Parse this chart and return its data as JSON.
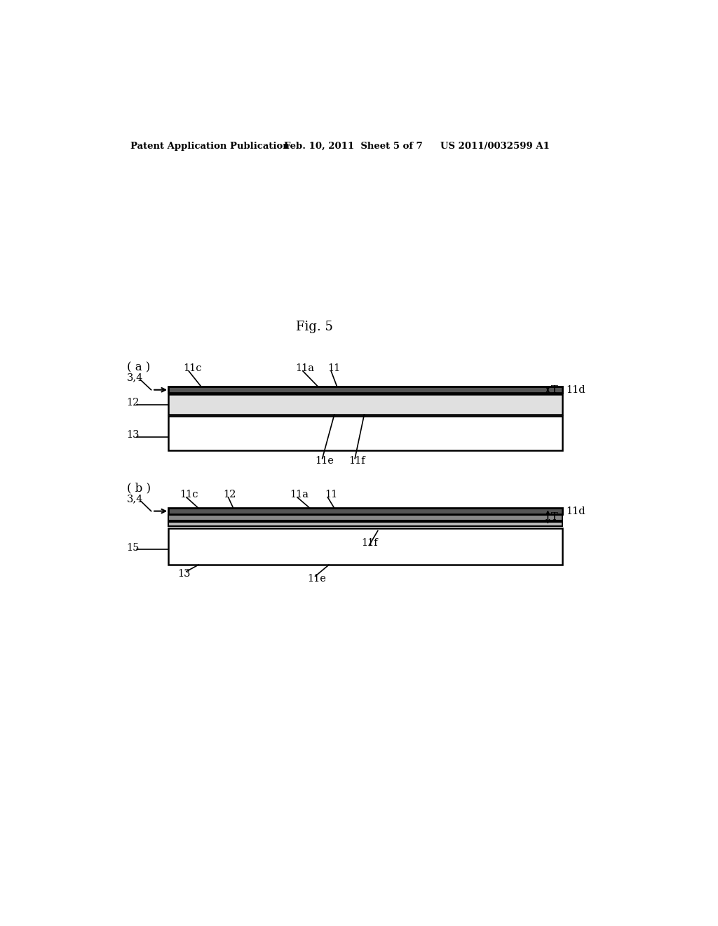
{
  "background_color": "#ffffff",
  "header_left": "Patent Application Publication",
  "header_mid": "Feb. 10, 2011  Sheet 5 of 7",
  "header_right": "US 2011/0032599 A1",
  "fig_label": "Fig. 5",
  "line_color": "#000000"
}
